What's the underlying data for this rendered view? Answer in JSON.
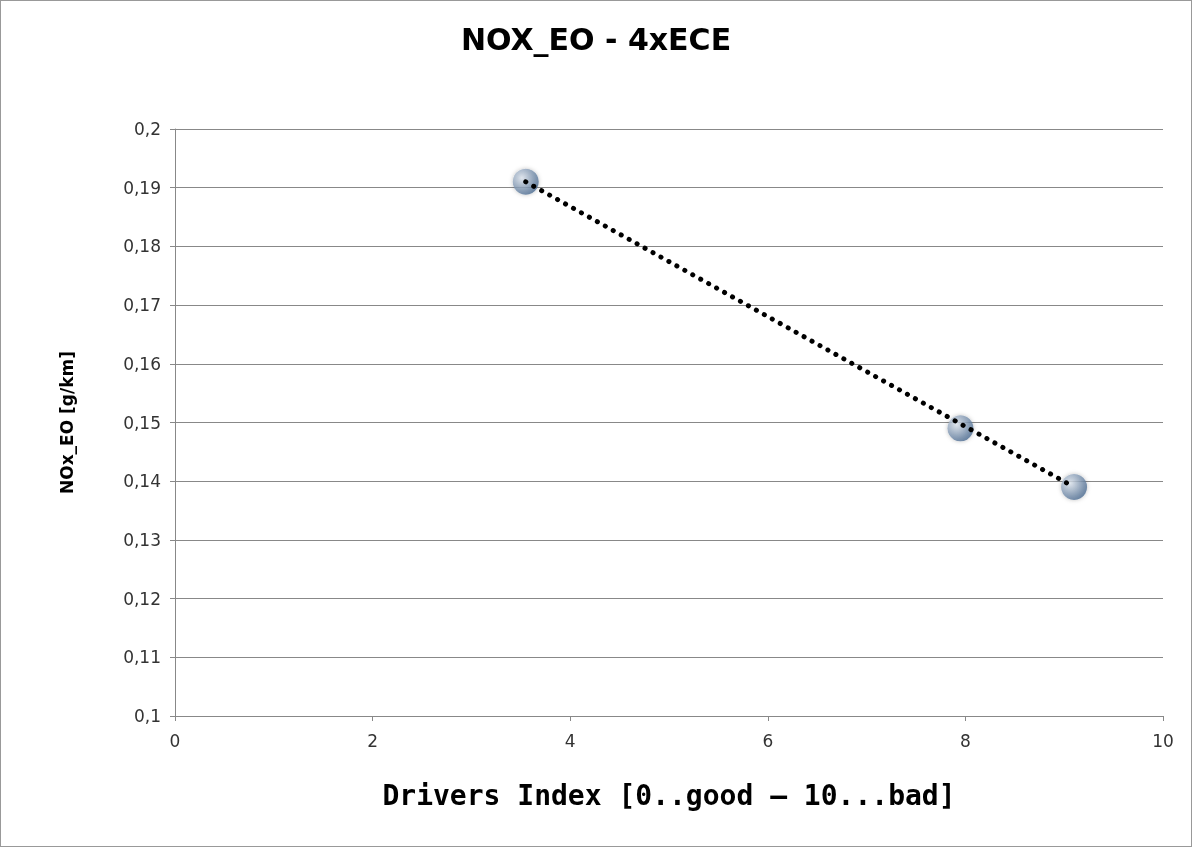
{
  "chart_data": {
    "type": "scatter",
    "title": "NOX_EO - 4xECE",
    "xlabel": "Drivers Index [0..good – 10...bad]",
    "ylabel": "NOx_EO [g/km]",
    "xlim": [
      0,
      10
    ],
    "xticks": [
      0,
      2,
      4,
      6,
      8,
      10
    ],
    "ylim": [
      0.1,
      0.2
    ],
    "yticks": [
      {
        "value": 0.1,
        "label": "0,1"
      },
      {
        "value": 0.11,
        "label": "0,11"
      },
      {
        "value": 0.12,
        "label": "0,12"
      },
      {
        "value": 0.13,
        "label": "0,13"
      },
      {
        "value": 0.14,
        "label": "0,14"
      },
      {
        "value": 0.15,
        "label": "0,15"
      },
      {
        "value": 0.16,
        "label": "0,16"
      },
      {
        "value": 0.17,
        "label": "0,17"
      },
      {
        "value": 0.18,
        "label": "0,18"
      },
      {
        "value": 0.19,
        "label": "0,19"
      },
      {
        "value": 0.2,
        "label": "0,2"
      }
    ],
    "grid": "y",
    "series": [
      {
        "marker": "circle",
        "color": "#4a6a90",
        "x": [
          3.55,
          7.95,
          9.1
        ],
        "values": [
          0.191,
          0.149,
          0.139
        ]
      },
      {
        "type": "line",
        "marker": "none",
        "color": "#000000",
        "line_style": "dotted",
        "x": [
          3.55,
          9.1
        ],
        "values": [
          0.191,
          0.139
        ]
      }
    ]
  }
}
